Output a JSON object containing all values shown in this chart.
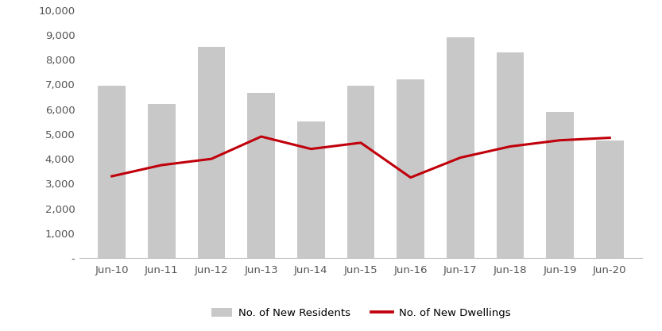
{
  "categories": [
    "Jun-10",
    "Jun-11",
    "Jun-12",
    "Jun-13",
    "Jun-14",
    "Jun-15",
    "Jun-16",
    "Jun-17",
    "Jun-18",
    "Jun-19",
    "Jun-20"
  ],
  "bar_values": [
    6950,
    6200,
    8500,
    6650,
    5500,
    6950,
    7200,
    8900,
    8300,
    5900,
    4750
  ],
  "line_values": [
    3300,
    3750,
    4000,
    4900,
    4400,
    4650,
    3250,
    4050,
    4500,
    4750,
    4850
  ],
  "bar_color": "#c8c8c8",
  "bar_edge_color": "none",
  "line_color": "#c0000b",
  "line_width": 2.2,
  "ylim": [
    0,
    10000
  ],
  "yticks": [
    0,
    1000,
    2000,
    3000,
    4000,
    5000,
    6000,
    7000,
    8000,
    9000,
    10000
  ],
  "ytick_labels": [
    "-",
    "1,000",
    "2,000",
    "3,000",
    "4,000",
    "5,000",
    "6,000",
    "7,000",
    "8,000",
    "9,000",
    "10,000"
  ],
  "legend_bar_label": "No. of New Residents",
  "legend_line_label": "No. of New Dwellings",
  "background_color": "#ffffff",
  "spine_color": "#c0c0c0",
  "tick_color": "#555555",
  "font_size": 9.5
}
